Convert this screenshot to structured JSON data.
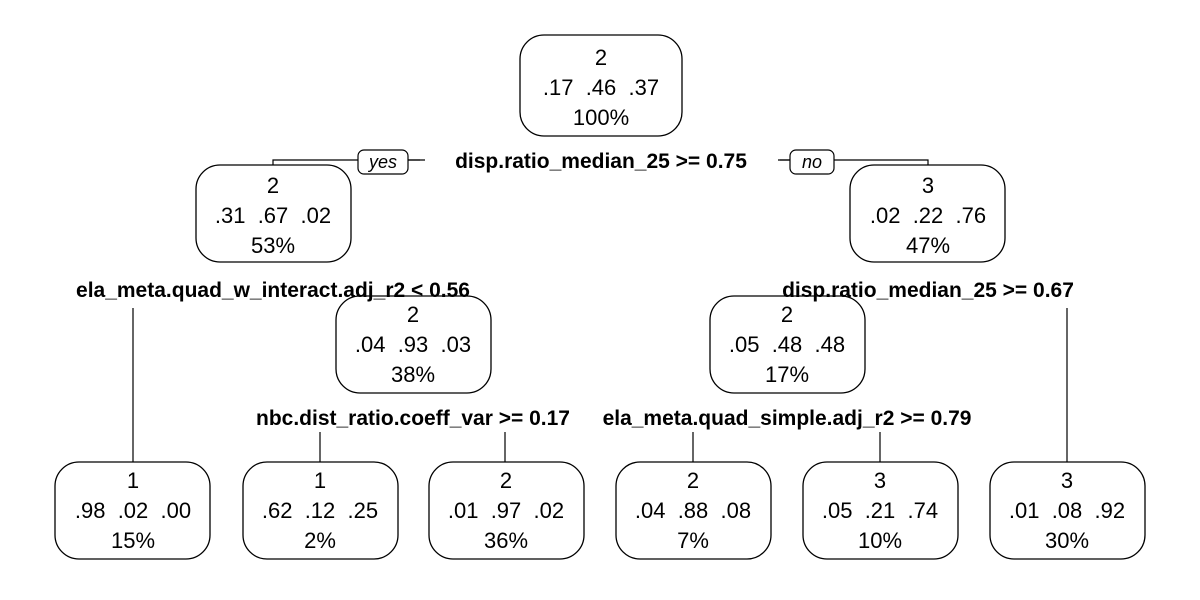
{
  "nodes": {
    "root": {
      "class": "2",
      "probs": ".17  .46  .37",
      "percent": "100%"
    },
    "n2": {
      "class": "2",
      "probs": ".31  .67  .02",
      "percent": "53%"
    },
    "n3": {
      "class": "3",
      "probs": ".02  .22  .76",
      "percent": "47%"
    },
    "n5": {
      "class": "2",
      "probs": ".04  .93  .03",
      "percent": "38%"
    },
    "n6": {
      "class": "2",
      "probs": ".05  .48  .48",
      "percent": "17%"
    },
    "leaf1": {
      "class": "1",
      "probs": ".98  .02  .00",
      "percent": "15%"
    },
    "leaf2": {
      "class": "1",
      "probs": ".62  .12  .25",
      "percent": "2%"
    },
    "leaf3": {
      "class": "2",
      "probs": ".01  .97  .02",
      "percent": "36%"
    },
    "leaf4": {
      "class": "2",
      "probs": ".04  .88  .08",
      "percent": "7%"
    },
    "leaf5": {
      "class": "3",
      "probs": ".05  .21  .74",
      "percent": "10%"
    },
    "leaf6": {
      "class": "3",
      "probs": ".01  .08  .92",
      "percent": "30%"
    }
  },
  "splits": {
    "root": "disp.ratio_median_25 >= 0.75",
    "n2": "ela_meta.quad_w_interact.adj_r2 < 0.56",
    "n3": "disp.ratio_median_25 >= 0.67",
    "n5": "nbc.dist_ratio.coeff_var >= 0.17",
    "n6": "ela_meta.quad_simple.adj_r2 >= 0.79"
  },
  "labels": {
    "yes": "yes",
    "no": "no"
  }
}
